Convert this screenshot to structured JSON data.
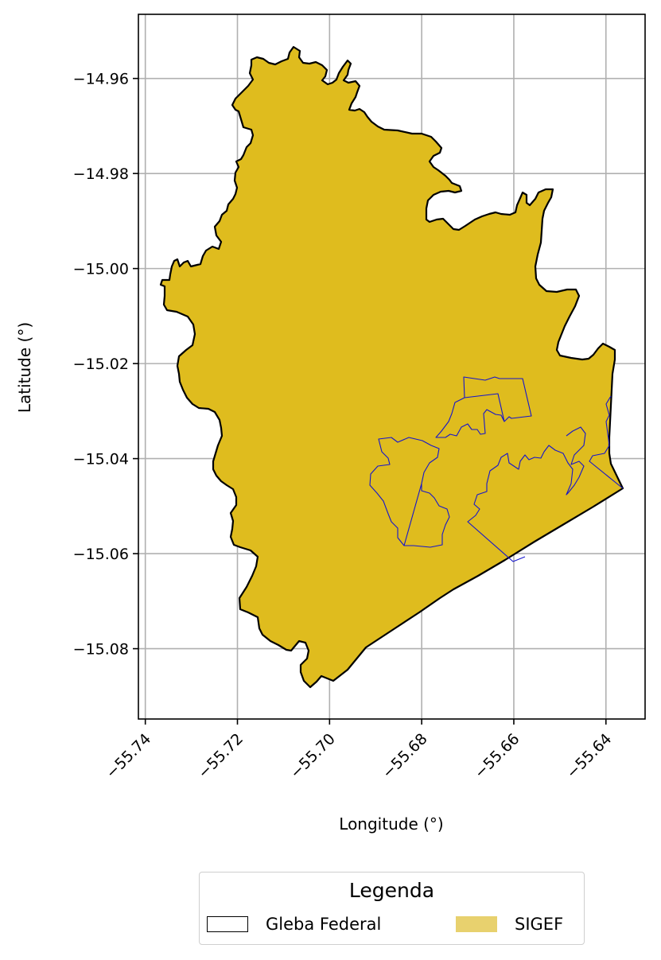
{
  "map": {
    "axes": {
      "xlabel": "Longitude (°)",
      "ylabel": "Latitude (°)",
      "x_ticks": [
        "−55.74",
        "−55.72",
        "−55.70",
        "−55.68",
        "−55.66",
        "−55.64"
      ],
      "y_ticks": [
        "−14.96",
        "−14.98",
        "−15.00",
        "−15.02",
        "−15.04",
        "−15.06",
        "−15.08"
      ],
      "xlim": [
        -55.7415,
        -55.6315
      ],
      "ylim": [
        -15.0948,
        -14.9465
      ],
      "grid": true
    },
    "colors": {
      "gleba_fill": "#dfbc1e",
      "gleba_edge": "#000000",
      "sigef_edge": "#1515cc",
      "legend_sigef": "#e8d16e"
    }
  },
  "legend": {
    "title": "Legenda",
    "entries": [
      {
        "label": "Gleba Federal"
      },
      {
        "label": "SIGEF"
      }
    ]
  }
}
